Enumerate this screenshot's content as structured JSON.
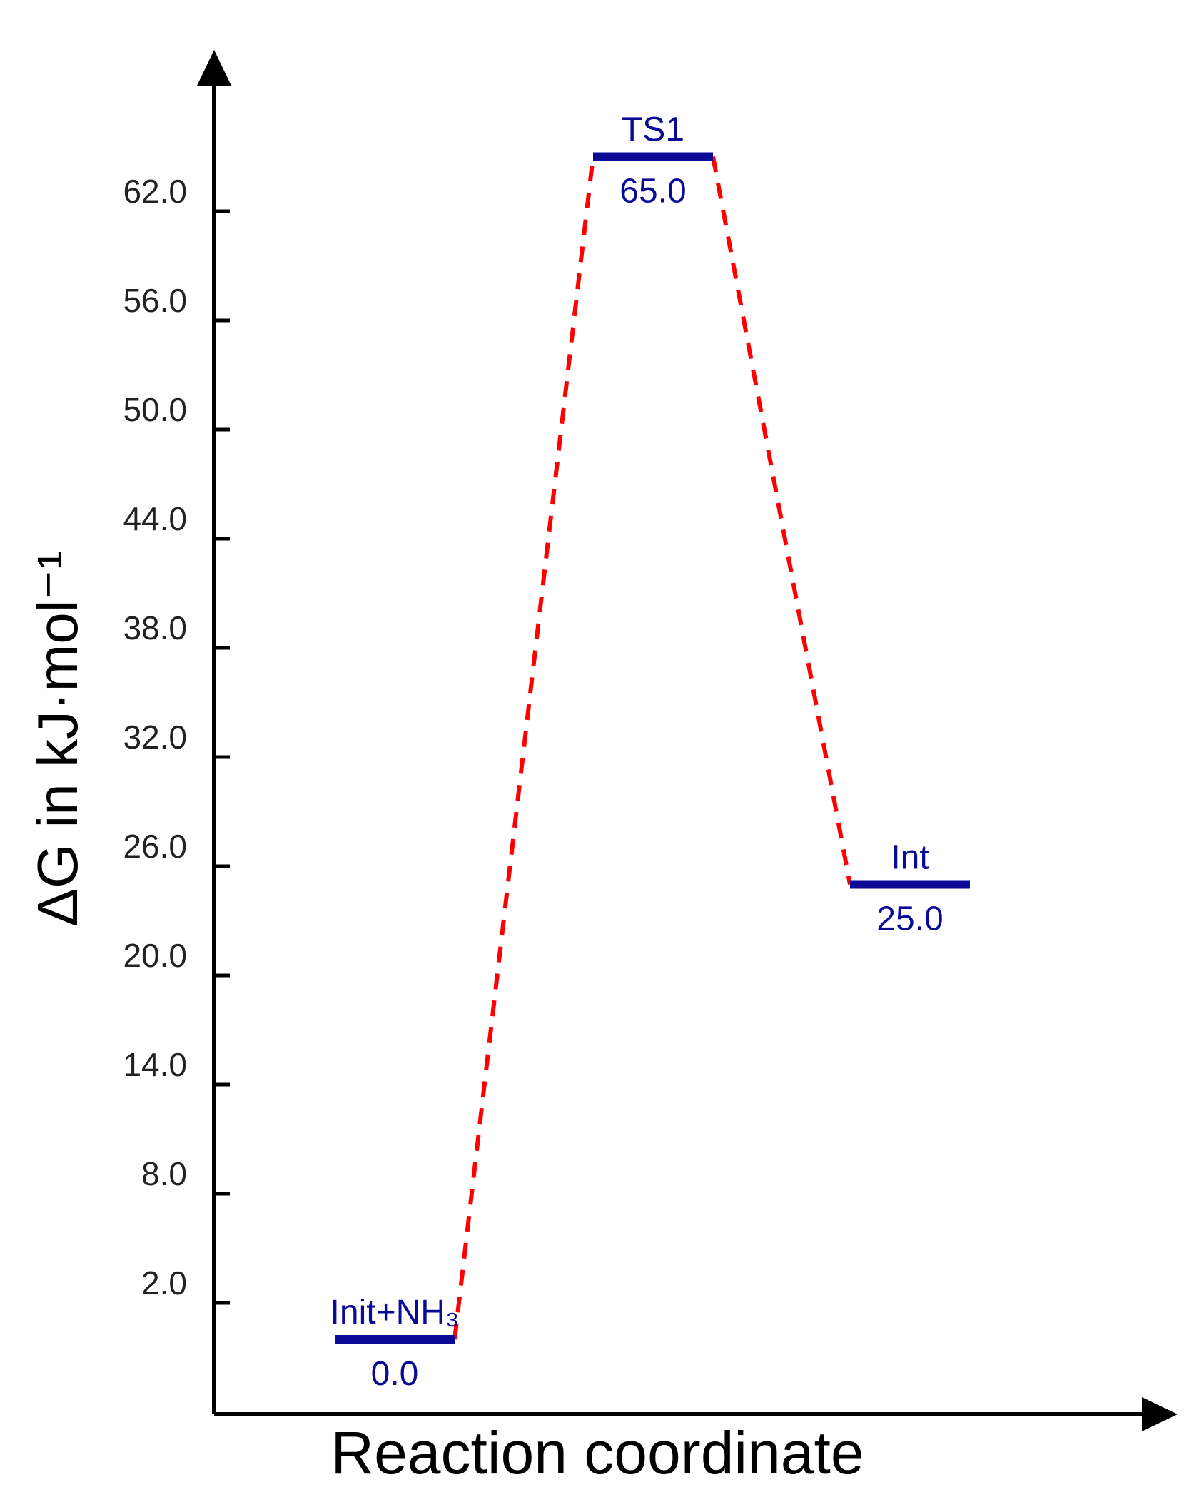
{
  "chart_data": {
    "type": "line",
    "title": "",
    "xlabel": "Reaction coordinate",
    "ylabel": "ΔG in kJ·mol⁻¹",
    "y_ticks": [
      "2.0",
      "8.0",
      "14.0",
      "20.0",
      "26.0",
      "32.0",
      "38.0",
      "44.0",
      "50.0",
      "56.0",
      "62.0"
    ],
    "ylim": [
      -4.0,
      68.0
    ],
    "grid": false,
    "levels": [
      {
        "name": "Init+NH₃",
        "value": 0.0,
        "value_label": "0.0"
      },
      {
        "name": "TS1",
        "value": 65.0,
        "value_label": "65.0"
      },
      {
        "name": "Int",
        "value": 25.0,
        "value_label": "25.0"
      }
    ],
    "colors": {
      "level": "#0a0a96",
      "connector": "#ff0000",
      "axis": "#000000"
    }
  }
}
